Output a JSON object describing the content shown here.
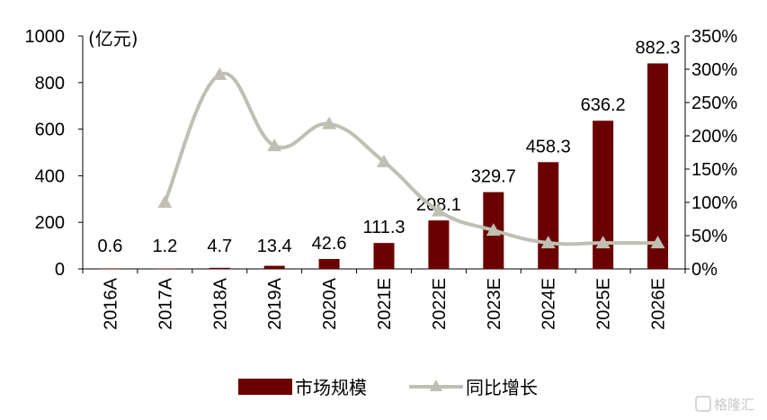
{
  "chart_data": {
    "type": "bar+line",
    "categories": [
      "2016A",
      "2017A",
      "2018A",
      "2019A",
      "2020A",
      "2021E",
      "2022E",
      "2023E",
      "2024E",
      "2025E",
      "2026E"
    ],
    "series": [
      {
        "name": "市场规模",
        "type": "bar",
        "axis": "left",
        "color": "#6b0000",
        "values": [
          0.6,
          1.2,
          4.7,
          13.4,
          42.6,
          111.3,
          208.1,
          329.7,
          458.3,
          636.2,
          882.3
        ],
        "labels": [
          "0.6",
          "1.2",
          "4.7",
          "13.4",
          "42.6",
          "111.3",
          "208.1",
          "329.7",
          "458.3",
          "636.2",
          "882.3"
        ]
      },
      {
        "name": "同比增长",
        "type": "line",
        "axis": "right",
        "color": "#bfbfb3",
        "marker": "triangle",
        "smooth": true,
        "values": [
          null,
          1.0,
          2.92,
          1.85,
          2.18,
          1.61,
          0.87,
          0.58,
          0.39,
          0.39,
          0.39
        ]
      }
    ],
    "y_left": {
      "unit": "(亿元)",
      "ylim": [
        0,
        1000
      ],
      "ticks": [
        0,
        200,
        400,
        600,
        800,
        1000
      ],
      "tick_labels": [
        "0",
        "200",
        "400",
        "600",
        "800",
        "1000"
      ]
    },
    "y_right": {
      "ylim": [
        0,
        3.5
      ],
      "ticks": [
        0,
        0.5,
        1.0,
        1.5,
        2.0,
        2.5,
        3.0,
        3.5
      ],
      "tick_labels": [
        "0%",
        "50%",
        "100%",
        "150%",
        "200%",
        "250%",
        "300%",
        "350%"
      ]
    },
    "grid": false,
    "legend_position": "bottom-center"
  },
  "watermark": {
    "text": "格隆汇"
  }
}
